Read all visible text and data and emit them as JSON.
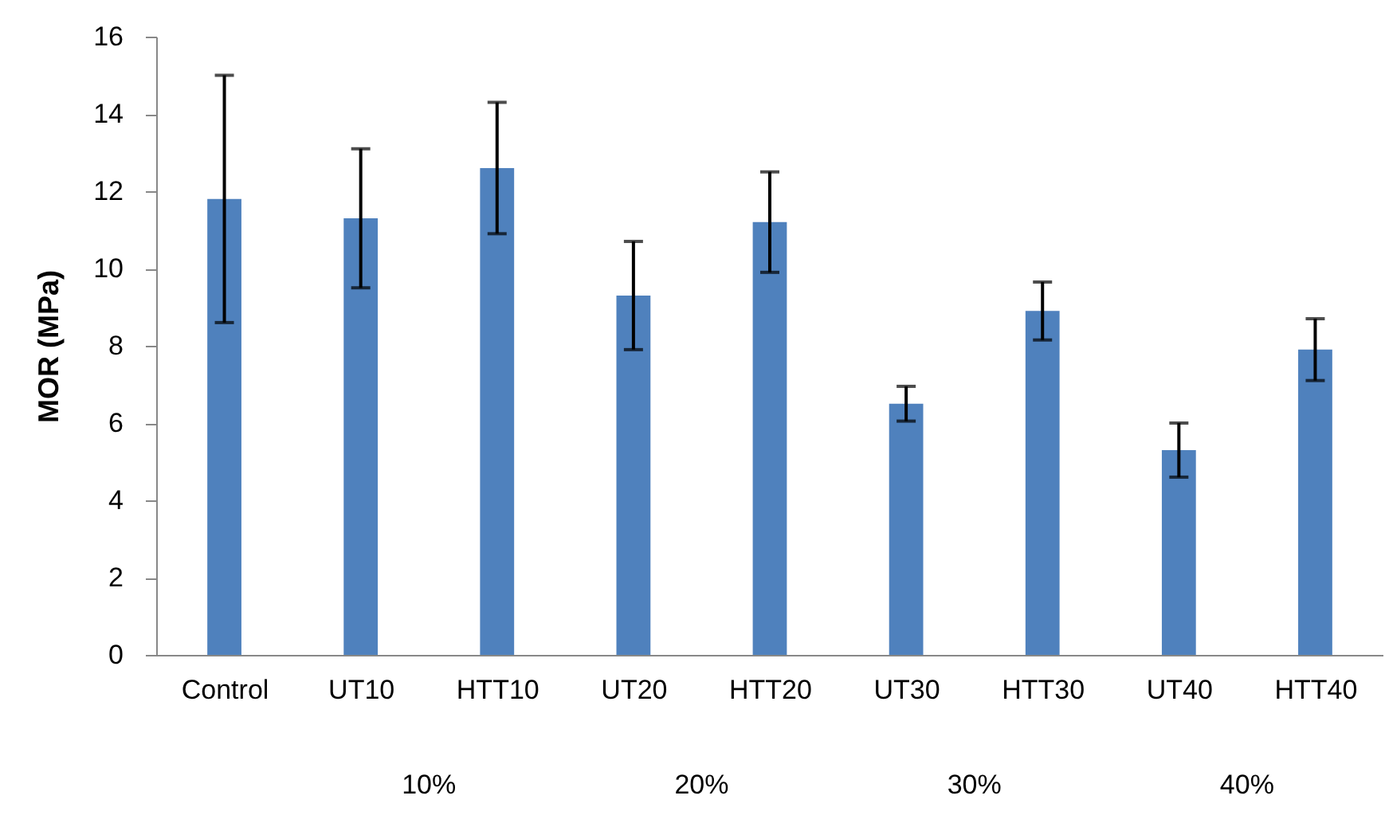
{
  "chart_data": {
    "type": "bar",
    "ylabel": "MOR (MPa)",
    "categories": [
      "Control",
      "UT10",
      "HTT10",
      "UT20",
      "HTT20",
      "UT30",
      "HTT30",
      "UT40",
      "HTT40"
    ],
    "values": [
      11.8,
      11.3,
      12.6,
      9.3,
      11.2,
      6.5,
      8.9,
      5.3,
      7.9
    ],
    "errors": [
      3.2,
      1.8,
      1.7,
      1.4,
      1.3,
      0.45,
      0.75,
      0.7,
      0.8
    ],
    "color": "#4f81bd",
    "annotations": [
      "10%",
      "20%",
      "30%",
      "40%"
    ],
    "ylim": [
      0,
      16
    ],
    "yticks": [
      0,
      2,
      4,
      6,
      8,
      10,
      12,
      14,
      16
    ],
    "grid": false
  }
}
